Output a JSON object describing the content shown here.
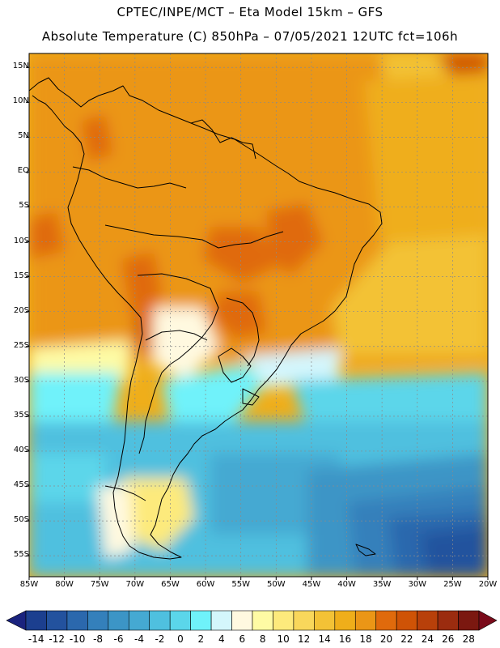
{
  "header": {
    "title_line1": "CPTEC/INPE/MCT –  Eta Model 15km – GFS",
    "title_line2": "Absolute Temperature (C) 850hPa – 07/05/2021 12UTC fct=106h"
  },
  "map": {
    "region": "South America",
    "lon_range": [
      -85,
      -20
    ],
    "lat_range": [
      -58,
      17
    ],
    "lat_labels": [
      "15N",
      "10N",
      "5N",
      "EQ",
      "5S",
      "10S",
      "15S",
      "20S",
      "25S",
      "30S",
      "35S",
      "40S",
      "45S",
      "50S",
      "55S"
    ],
    "lon_labels": [
      "85W",
      "80W",
      "75W",
      "70W",
      "65W",
      "60W",
      "55W",
      "50W",
      "45W",
      "40W",
      "35W",
      "30W",
      "25W",
      "20W"
    ]
  },
  "colorbar": {
    "labels": [
      "-14",
      "-12",
      "-10",
      "-8",
      "-6",
      "-4",
      "-2",
      "0",
      "2",
      "4",
      "6",
      "8",
      "10",
      "12",
      "14",
      "16",
      "18",
      "20",
      "22",
      "24",
      "26",
      "28"
    ],
    "colors": [
      "#1c3f8f",
      "#23529e",
      "#2b68ad",
      "#3480bb",
      "#3c95c6",
      "#45a9d2",
      "#4fc0df",
      "#5bd6ea",
      "#6ff2fa",
      "#d4f6fc",
      "#fff9e0",
      "#fefba4",
      "#fdea7c",
      "#f9d75b",
      "#f3c236",
      "#efae1a",
      "#eb9616",
      "#e06a0c",
      "#cf5306",
      "#b8400a",
      "#9b2c0f",
      "#7b1810"
    ],
    "low_color": "#1a237e",
    "high_color": "#7a0a1a"
  }
}
